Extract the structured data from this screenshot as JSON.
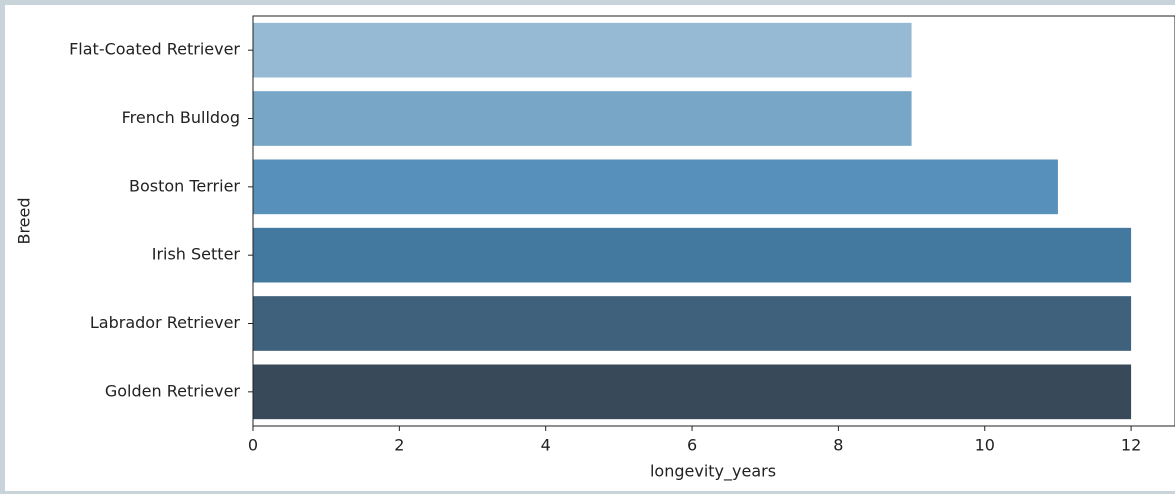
{
  "chart_data": {
    "type": "barh",
    "categories": [
      "Flat-Coated Retriever",
      "French Bulldog",
      "Boston Terrier",
      "Irish Setter",
      "Labrador Retriever",
      "Golden Retriever"
    ],
    "values": [
      9,
      9,
      11,
      12,
      12,
      12
    ],
    "colors": [
      "#97bad4",
      "#77a6c6",
      "#5690bb",
      "#43799f",
      "#3f617c",
      "#38495a"
    ],
    "xlabel": "longevity_years",
    "ylabel": "Breed",
    "xlim": [
      0,
      12.6
    ],
    "xticks": [
      0,
      2,
      4,
      6,
      8,
      10,
      12
    ]
  }
}
